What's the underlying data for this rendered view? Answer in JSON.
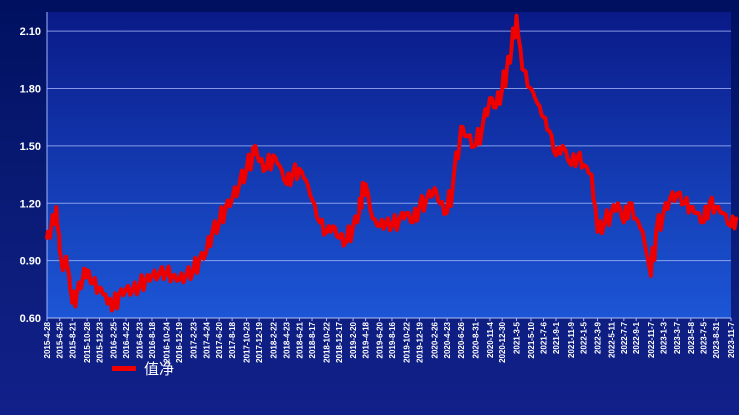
{
  "chart_data": {
    "type": "line",
    "legend": {
      "label": "值净",
      "color": "#ee0000",
      "position": "bottom-left"
    },
    "ylim": [
      0.6,
      2.2
    ],
    "y_ticks": [
      "2.10",
      "1.80",
      "1.50",
      "1.20",
      "0.90",
      "0.60"
    ],
    "grid": true,
    "x_tick_labels": [
      "2015-4-28",
      "2015-6-25",
      "2015-8-21",
      "2015-10-28",
      "2015-12-23",
      "2016-2-25",
      "2016-4-22",
      "2016-6-23",
      "2016-8-18",
      "2016-10-24",
      "2016-12-19",
      "2017-2-23",
      "2017-4-24",
      "2017-6-20",
      "2017-8-18",
      "2017-10-23",
      "2017-12-19",
      "2018-2-22",
      "2018-4-23",
      "2018-6-21",
      "2018-8-17",
      "2018-10-22",
      "2018-12-17",
      "2019-2-20",
      "2019-4-18",
      "2019-6-20",
      "2019-8-16",
      "2019-10-22",
      "2019-12-19",
      "2020-2-26",
      "2020-4-23",
      "2020-6-26",
      "2020-8-31",
      "2020-11-4",
      "2020-12-30",
      "2021-3-5",
      "2021-5-10",
      "2021-7-6",
      "2021-9-1",
      "2021-11-9",
      "2022-1-5",
      "2022-3-9",
      "2022-5-11",
      "2022-7-7",
      "2022-9-1",
      "2022-11-7",
      "2023-1-3",
      "2023-3-7",
      "2023-5-8",
      "2023-7-5",
      "2023-8-31",
      "2023-11-7"
    ],
    "series": [
      {
        "color": "#ee0000",
        "x": [
          "2015-4-28",
          "2015-5-15",
          "2015-6-10",
          "2015-6-25",
          "2015-7-10",
          "2015-7-25",
          "2015-8-10",
          "2015-8-21",
          "2015-9-10",
          "2015-10-10",
          "2015-10-28",
          "2015-11-20",
          "2015-12-23",
          "2016-1-15",
          "2016-2-1",
          "2016-2-25",
          "2016-3-20",
          "2016-4-22",
          "2016-5-20",
          "2016-6-23",
          "2016-7-20",
          "2016-8-18",
          "2016-9-20",
          "2016-10-24",
          "2016-11-20",
          "2016-12-19",
          "2017-1-20",
          "2017-2-23",
          "2017-3-20",
          "2017-4-24",
          "2017-5-20",
          "2017-6-20",
          "2017-7-20",
          "2017-8-18",
          "2017-9-20",
          "2017-10-23",
          "2017-11-20",
          "2017-12-1",
          "2017-12-19",
          "2018-1-20",
          "2018-2-22",
          "2018-3-20",
          "2018-4-23",
          "2018-5-20",
          "2018-6-21",
          "2018-7-20",
          "2018-8-17",
          "2018-9-20",
          "2018-10-22",
          "2018-11-20",
          "2018-12-17",
          "2019-1-20",
          "2019-2-20",
          "2019-3-20",
          "2019-4-1",
          "2019-4-18",
          "2019-5-20",
          "2019-6-20",
          "2019-7-20",
          "2019-8-16",
          "2019-9-20",
          "2019-10-22",
          "2019-11-20",
          "2019-12-19",
          "2020-1-20",
          "2020-2-26",
          "2020-3-20",
          "2020-4-23",
          "2020-5-20",
          "2020-6-26",
          "2020-7-20",
          "2020-8-31",
          "2020-10-1",
          "2020-11-4",
          "2020-12-1",
          "2020-12-30",
          "2021-1-20",
          "2021-2-10",
          "2021-3-5",
          "2021-4-1",
          "2021-5-10",
          "2021-6-10",
          "2021-7-6",
          "2021-8-1",
          "2021-9-1",
          "2021-10-1",
          "2021-11-9",
          "2021-12-10",
          "2022-1-5",
          "2022-2-10",
          "2022-3-9",
          "2022-4-10",
          "2022-5-11",
          "2022-6-10",
          "2022-7-7",
          "2022-8-1",
          "2022-9-1",
          "2022-10-1",
          "2022-11-7",
          "2022-12-1",
          "2023-1-3",
          "2023-2-1",
          "2023-3-7",
          "2023-4-10",
          "2023-5-8",
          "2023-6-1",
          "2023-7-5",
          "2023-8-1",
          "2023-8-31",
          "2023-10-1",
          "2023-11-7",
          "2023-11-30"
        ],
        "values": [
          1.02,
          1.05,
          1.18,
          0.95,
          0.85,
          0.92,
          0.78,
          0.68,
          0.72,
          0.82,
          0.85,
          0.78,
          0.76,
          0.72,
          0.68,
          0.66,
          0.72,
          0.75,
          0.74,
          0.77,
          0.8,
          0.82,
          0.83,
          0.84,
          0.82,
          0.8,
          0.82,
          0.85,
          0.9,
          0.95,
          1.05,
          1.1,
          1.18,
          1.22,
          1.3,
          1.38,
          1.45,
          1.5,
          1.42,
          1.38,
          1.45,
          1.4,
          1.3,
          1.35,
          1.38,
          1.32,
          1.22,
          1.1,
          1.05,
          1.08,
          1.02,
          1.0,
          1.08,
          1.15,
          1.25,
          1.3,
          1.12,
          1.08,
          1.1,
          1.08,
          1.12,
          1.15,
          1.1,
          1.18,
          1.22,
          1.28,
          1.2,
          1.15,
          1.3,
          1.6,
          1.55,
          1.5,
          1.6,
          1.75,
          1.7,
          1.8,
          1.9,
          2.0,
          2.18,
          1.9,
          1.8,
          1.72,
          1.65,
          1.58,
          1.45,
          1.5,
          1.4,
          1.45,
          1.4,
          1.35,
          1.05,
          1.1,
          1.15,
          1.2,
          1.1,
          1.2,
          1.12,
          1.05,
          0.82,
          1.05,
          1.15,
          1.22,
          1.25,
          1.2,
          1.18,
          1.15,
          1.1,
          1.2,
          1.18,
          1.15,
          1.08,
          1.12
        ]
      }
    ]
  }
}
